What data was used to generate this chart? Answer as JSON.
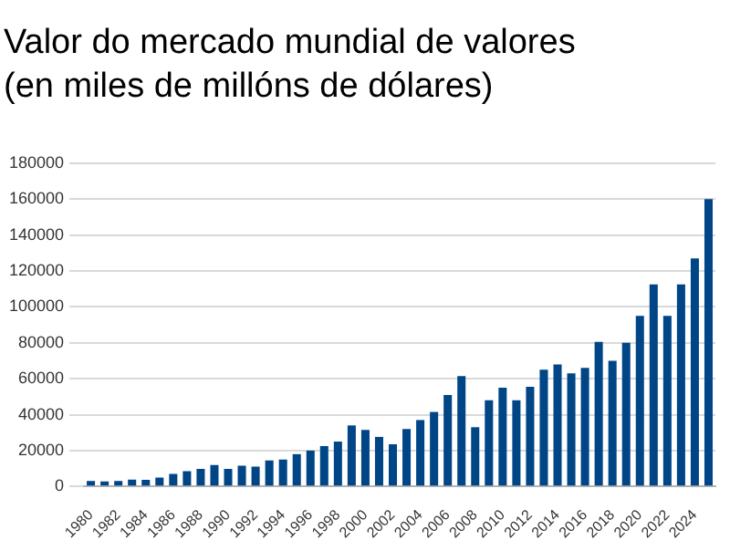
{
  "chart_data": {
    "type": "bar",
    "title": "Valor do mercado mundial de valores\n(en miles de millóns de dólares)",
    "categories": [
      "1980",
      null,
      "1982",
      null,
      "1984",
      null,
      "1986",
      null,
      "1988",
      null,
      "1990",
      null,
      "1992",
      null,
      "1994",
      null,
      "1996",
      null,
      "1998",
      null,
      "2000",
      null,
      "2002",
      null,
      "2004",
      null,
      "2006",
      null,
      "2008",
      null,
      "2010",
      null,
      "2012",
      null,
      "2014",
      null,
      "2016",
      null,
      "2018",
      null,
      "2020",
      null,
      "2022",
      null,
      "2024",
      null
    ],
    "values": [
      3000,
      2800,
      3000,
      3800,
      3700,
      5000,
      7000,
      8500,
      9800,
      12000,
      9800,
      11500,
      11000,
      14500,
      15000,
      18000,
      20000,
      22500,
      25000,
      34000,
      31500,
      27600,
      23500,
      32000,
      37000,
      41500,
      51000,
      61500,
      33000,
      48000,
      55000,
      48000,
      55500,
      65000,
      68000,
      63000,
      66000,
      80500,
      70000,
      80000,
      95000,
      112500,
      95000,
      112500,
      127000,
      160000
    ],
    "color": "#004586",
    "ylim": [
      0,
      180000
    ],
    "yticks": [
      0,
      20000,
      40000,
      60000,
      80000,
      100000,
      120000,
      140000,
      160000,
      180000
    ],
    "grid": "y"
  }
}
